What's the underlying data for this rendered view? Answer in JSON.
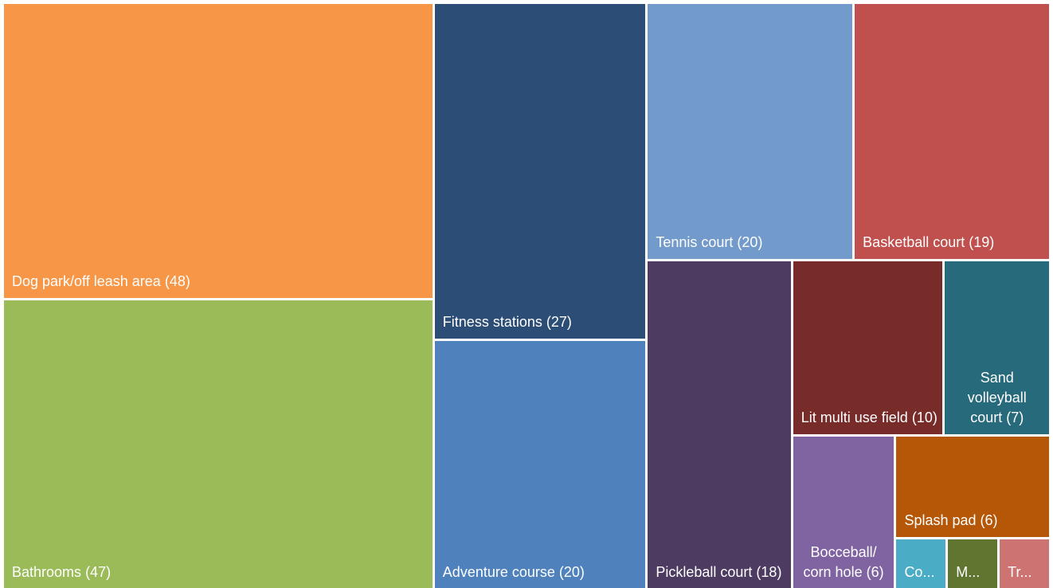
{
  "chart_data": {
    "type": "treemap",
    "categories": [
      "Dog park/off leash area",
      "Bathrooms",
      "Fitness stations",
      "Adventure course",
      "Tennis court",
      "Basketball court",
      "Pickleball court",
      "Lit multi use field",
      "Sand volleyball court",
      "Bocceball/ corn hole",
      "Splash pad",
      "Co...",
      "M...",
      "Tr..."
    ],
    "values": [
      48,
      47,
      27,
      20,
      20,
      19,
      18,
      10,
      7,
      6,
      6,
      1,
      1,
      1
    ],
    "value_labels": [
      "(48)",
      "(47)",
      "(27)",
      "(20)",
      "(20)",
      "(19)",
      "(18)",
      "(10)",
      "(7)",
      "(6)",
      "(6)",
      null,
      null,
      null
    ],
    "colors": [
      "#f79646",
      "#9bbb59",
      "#2c4d75",
      "#4f81bd",
      "#729aca",
      "#c0504d",
      "#4d3b62",
      "#772c2a",
      "#276a7c",
      "#8064a2",
      "#b65708",
      "#4bacc6",
      "#5f7530",
      "#cd7371"
    ]
  }
}
